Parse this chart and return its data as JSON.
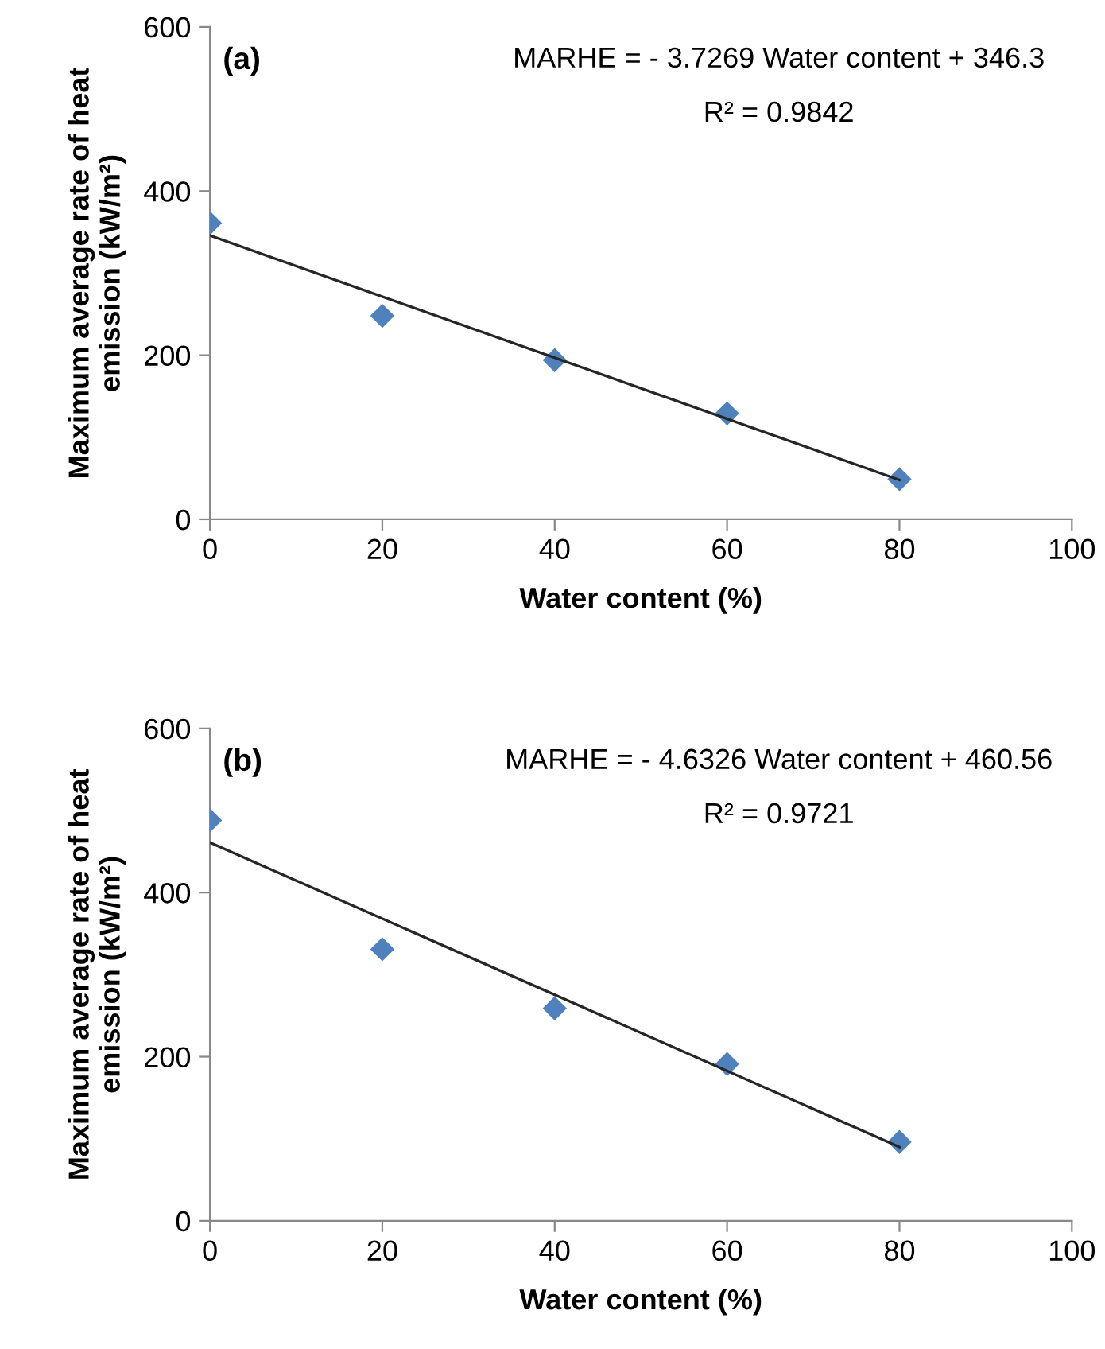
{
  "chart_data": [
    {
      "type": "scatter",
      "xlabel": "Water content (%)",
      "ylabel": "Maximum average rate of heat emission (kW/m²)",
      "xlim": [
        0,
        100
      ],
      "xticks": [
        0,
        20,
        40,
        60,
        80,
        100
      ],
      "ylim": [
        0,
        600
      ],
      "yticks": [
        0,
        200,
        400,
        600
      ],
      "grid": false,
      "legend": false,
      "annotations": [
        "(a)",
        "MARHE = - 3.7269 Water content + 346.3",
        "R² = 0.9842"
      ],
      "series": [
        {
          "color": "#4f81bd",
          "marker": "diamond",
          "x": [
            0,
            20,
            40,
            60,
            80
          ],
          "values": [
            361,
            248,
            194,
            129,
            49
          ]
        },
        {
          "type": "line",
          "marker": "none",
          "color": "#262626",
          "x": [
            0,
            80
          ],
          "values": [
            346,
            48
          ]
        }
      ]
    },
    {
      "type": "scatter",
      "xlabel": "Water content (%)",
      "ylabel": "Maximum average rate of heat emission (kW/m²)",
      "xlim": [
        0,
        100
      ],
      "xticks": [
        0,
        20,
        40,
        60,
        80,
        100
      ],
      "ylim": [
        0,
        600
      ],
      "yticks": [
        0,
        200,
        400,
        600
      ],
      "grid": false,
      "legend": false,
      "annotations": [
        "(b)",
        "MARHE = - 4.6326 Water content + 460.56",
        "R² = 0.9721"
      ],
      "series": [
        {
          "color": "#4f81bd",
          "marker": "diamond",
          "x": [
            0,
            20,
            40,
            60,
            80
          ],
          "values": [
            488,
            331,
            259,
            191,
            96
          ]
        },
        {
          "type": "line",
          "marker": "none",
          "color": "#262626",
          "x": [
            0,
            80
          ],
          "values": [
            461,
            90
          ]
        }
      ]
    }
  ]
}
